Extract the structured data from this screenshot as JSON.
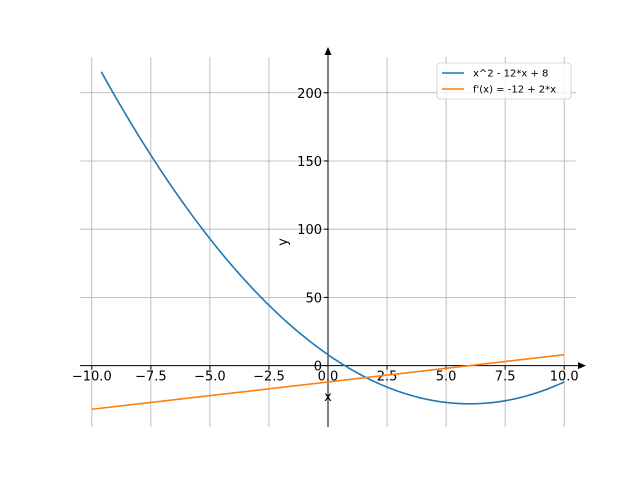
{
  "chart_data": {
    "type": "line",
    "xlabel": "x",
    "ylabel": "y",
    "xlim": [
      -10.5,
      10.5
    ],
    "ylim": [
      -45,
      235
    ],
    "grid": true,
    "legend_position": "top-right",
    "x_ticks": [
      -10.0,
      -7.5,
      -5.0,
      -2.5,
      0.0,
      2.5,
      5.0,
      7.5,
      10.0
    ],
    "x_tick_labels": [
      "−10.0",
      "−7.5",
      "−5.0",
      "−2.5",
      "0.0",
      "2.5",
      "5.0",
      "7.5",
      "10.0"
    ],
    "y_ticks": [
      0,
      50,
      100,
      150,
      200
    ],
    "y_tick_labels": [
      "0",
      "50",
      "100",
      "150",
      "200"
    ],
    "series": [
      {
        "name": "x^2 - 12*x + 8",
        "color": "#1f77b4",
        "x": [
          -9.6,
          -9,
          -8,
          -7,
          -6,
          -5,
          -4,
          -3,
          -2,
          -1,
          0,
          1,
          2,
          3,
          4,
          5,
          6,
          7,
          8,
          9,
          10
        ],
        "y": [
          215.36,
          197,
          168,
          141,
          116,
          93,
          72,
          53,
          36,
          21,
          8,
          -3,
          -12,
          -19,
          -24,
          -27,
          -28,
          -27,
          -24,
          -19,
          -12
        ]
      },
      {
        "name": "f'(x) = -12 + 2*x",
        "color": "#ff7f0e",
        "x": [
          -10,
          10
        ],
        "y": [
          -32,
          8
        ]
      }
    ]
  }
}
